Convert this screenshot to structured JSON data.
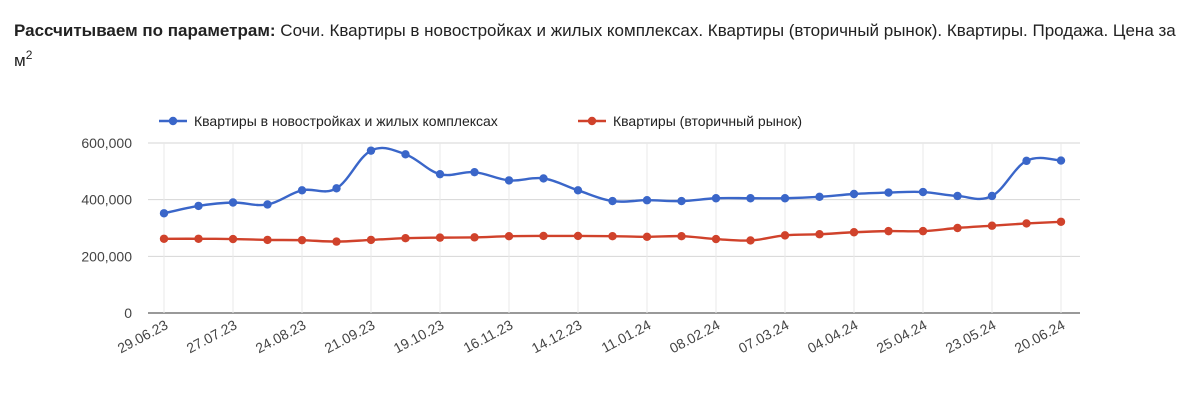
{
  "header": {
    "label": "Рассчитываем по параметрам:",
    "text": " Сочи. Квартиры в новостройках и жилых комплексах. Квартиры (вторичный рынок). Квартиры. Продажа. Цена за м",
    "superscript": "2"
  },
  "chart_data": {
    "type": "line",
    "title": "",
    "xlabel": "",
    "ylabel": "",
    "ylim": [
      0,
      600000
    ],
    "yticks": [
      "0",
      "200,000",
      "400,000",
      "600,000"
    ],
    "xtick_labels": [
      "29.06.23",
      "27.07.23",
      "24.08.23",
      "21.09.23",
      "19.10.23",
      "16.11.23",
      "14.12.23",
      "11.01.24",
      "08.02.24",
      "07.03.24",
      "04.04.24",
      "25.04.24",
      "23.05.24",
      "20.06.24"
    ],
    "grid": true,
    "legend_position": "top-left",
    "series": [
      {
        "name": "Квартиры в новостройках и жилых комплексах",
        "color": "#3a66c9",
        "values": [
          352000,
          378000,
          390000,
          383000,
          433000,
          440000,
          573000,
          560000,
          490000,
          497000,
          468000,
          475000,
          433000,
          395000,
          398000,
          395000,
          405000,
          405000,
          405000,
          410000,
          420000,
          425000,
          427000,
          413000,
          413000,
          537000,
          538000
        ]
      },
      {
        "name": "Квартиры (вторичный рынок)",
        "color": "#d0422b",
        "values": [
          262000,
          262000,
          261000,
          258000,
          257000,
          252000,
          258000,
          264000,
          266000,
          267000,
          271000,
          272000,
          272000,
          271000,
          269000,
          271000,
          261000,
          256000,
          274000,
          278000,
          285000,
          289000,
          289000,
          300000,
          308000,
          316000,
          322000
        ]
      }
    ]
  }
}
